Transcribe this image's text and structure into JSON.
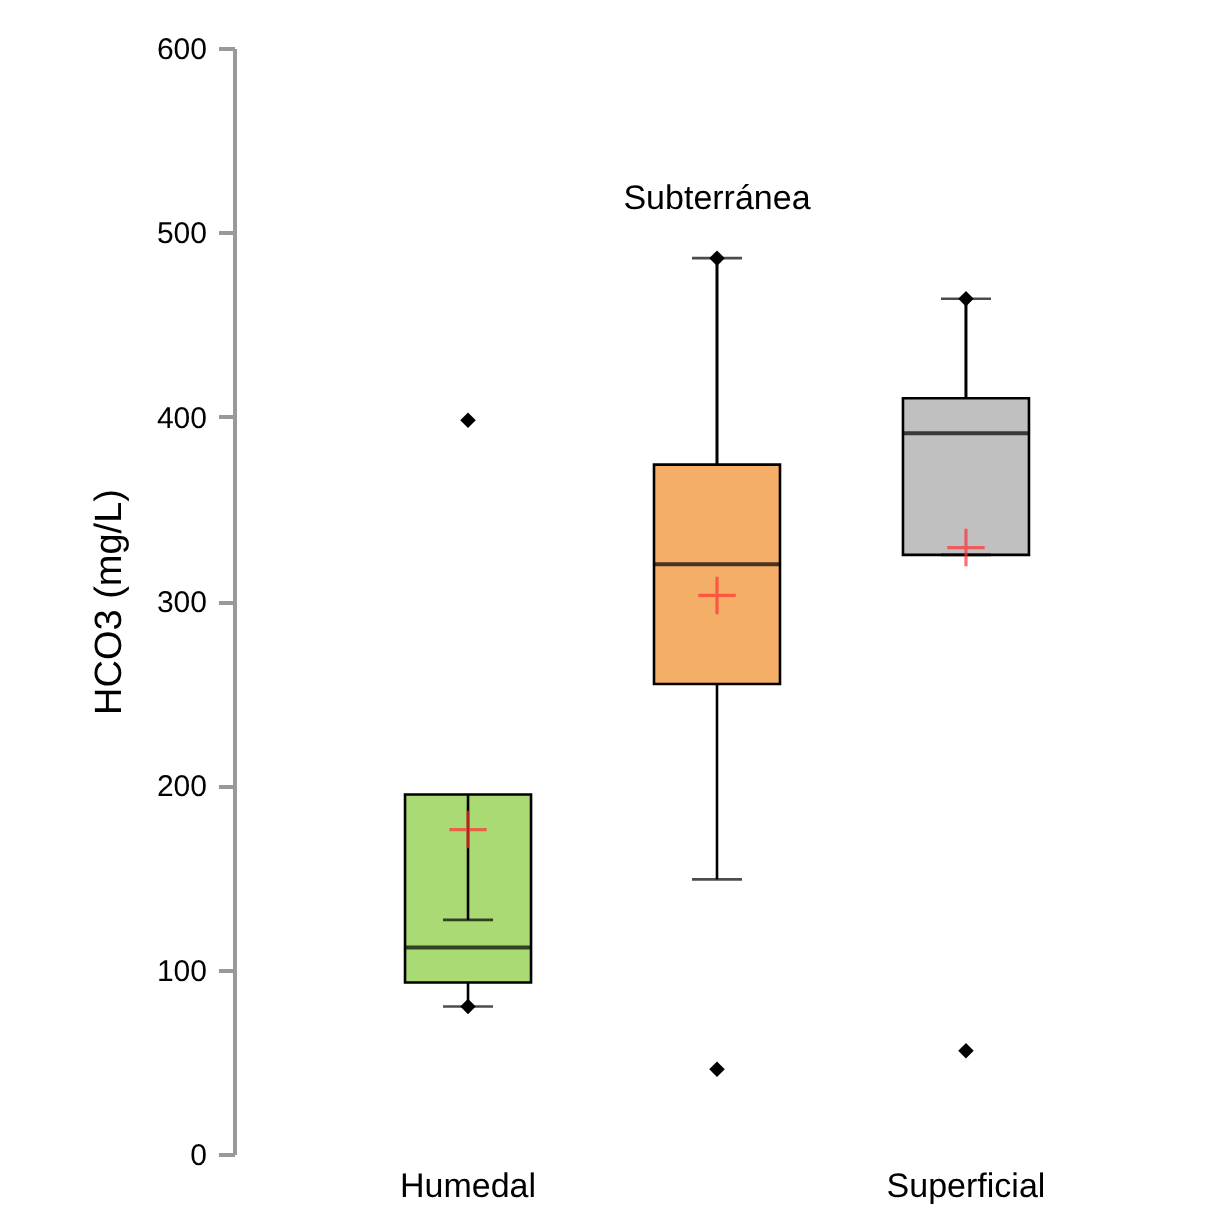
{
  "chart_data": {
    "type": "box",
    "ylabel": "HCO3 (mg/L)",
    "categories": [
      "Humedal",
      "Subterránea",
      "Superficial"
    ],
    "colors": [
      "#a9da74",
      "#f4ae68",
      "#c0c0c0"
    ],
    "boxes": [
      {
        "low": 80,
        "q1": 93,
        "median": 112,
        "q3": 195,
        "high": 127,
        "mean": 176,
        "outliers": [
          80,
          398
        ]
      },
      {
        "low": 149,
        "q1": 255,
        "median": 320,
        "q3": 374,
        "high": 486,
        "mean": 303,
        "outliers": [
          46,
          486
        ]
      },
      {
        "low": 325,
        "q1": 325,
        "median": 391,
        "q3": 410,
        "high": 464,
        "mean": 329,
        "outliers": [
          56,
          464
        ]
      }
    ],
    "ylim": [
      0,
      600
    ],
    "yticks": [
      0,
      100,
      200,
      300,
      400,
      500,
      600
    ],
    "grid": false
  }
}
